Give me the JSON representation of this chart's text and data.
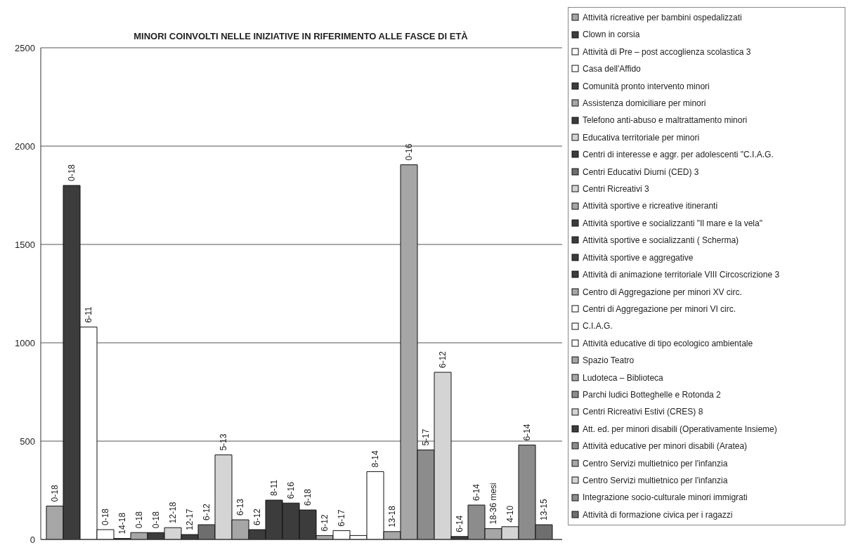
{
  "chart_data": {
    "type": "bar",
    "title": "MINORI COINVOLTI NELLE INIZIATIVE IN RIFERIMENTO ALLE FASCE DI ETÀ",
    "categories": [
      null
    ],
    "series": [
      {
        "name": "Attività ricreative per bambini ospedalizzati",
        "color": "#a6a6a6",
        "values": [
          170
        ],
        "value_labels": [
          "0-18"
        ]
      },
      {
        "name": "Clown in corsia",
        "color": "#3c3c3c",
        "values": [
          1800
        ],
        "value_labels": [
          "0-18"
        ]
      },
      {
        "name": "Attività di Pre – post accoglienza scolastica 3",
        "color": "#ffffff",
        "values": [
          1080
        ],
        "value_labels": [
          "6-11"
        ]
      },
      {
        "name": "Casa dell'Affido",
        "color": "#ffffff",
        "values": [
          50
        ],
        "value_labels": [
          "0-18"
        ]
      },
      {
        "name": "Comunità pronto intervento minori",
        "color": "#3c3c3c",
        "values": [
          5
        ],
        "value_labels": [
          "14-18"
        ]
      },
      {
        "name": "Assistenza domiciliare per minori",
        "color": "#a6a6a6",
        "values": [
          35
        ],
        "value_labels": [
          "0-18"
        ]
      },
      {
        "name": "Telefono anti-abuso e maltrattamento minori",
        "color": "#3c3c3c",
        "values": [
          35
        ],
        "value_labels": [
          "0-18"
        ]
      },
      {
        "name": "Educativa territoriale per minori",
        "color": "#d4d4d4",
        "values": [
          60
        ],
        "value_labels": [
          "12-18"
        ]
      },
      {
        "name": "Centri di interesse e aggr. per adolescenti  \"C.I.A.G.",
        "color": "#3c3c3c",
        "values": [
          25
        ],
        "value_labels": [
          "12-17"
        ]
      },
      {
        "name": "Centri Educativi Diurni (CED)  3",
        "color": "#6e6e6e",
        "values": [
          75
        ],
        "value_labels": [
          "6-12"
        ]
      },
      {
        "name": "Centri Ricreativi  3",
        "color": "#d4d4d4",
        "values": [
          430
        ],
        "value_labels": [
          "5-13"
        ]
      },
      {
        "name": "Attività sportive e ricreative itineranti",
        "color": "#a6a6a6",
        "values": [
          100
        ],
        "value_labels": [
          "6-13"
        ]
      },
      {
        "name": "Attività sportive e socializzanti \"Il mare e la vela\"",
        "color": "#3c3c3c",
        "values": [
          50
        ],
        "value_labels": [
          "6-12"
        ]
      },
      {
        "name": "Attività sportive e socializzanti  ( Scherma)",
        "color": "#3c3c3c",
        "values": [
          200
        ],
        "value_labels": [
          "8-11"
        ]
      },
      {
        "name": "Attività  sportive e aggregative",
        "color": "#3c3c3c",
        "values": [
          185
        ],
        "value_labels": [
          "6-16"
        ]
      },
      {
        "name": "Attività di animazione territoriale VIII Circoscrizione   3",
        "color": "#3c3c3c",
        "values": [
          150
        ],
        "value_labels": [
          "6-18"
        ]
      },
      {
        "name": "Centro di Aggregazione per minori  XV circ.",
        "color": "#a6a6a6",
        "values": [
          20
        ],
        "value_labels": [
          "6-12"
        ]
      },
      {
        "name": "Centri di Aggregazione per minori VI circ.",
        "color": "#ffffff",
        "values": [
          45
        ],
        "value_labels": [
          "6-17"
        ]
      },
      {
        "name": "C.I.A.G.",
        "color": "#ffffff",
        "values": [
          20
        ],
        "value_labels": [
          null
        ]
      },
      {
        "name": "Attività educative di tipo ecologico ambientale",
        "color": "#ffffff",
        "values": [
          345
        ],
        "value_labels": [
          "8-14"
        ]
      },
      {
        "name": "Spazio Teatro",
        "color": "#a6a6a6",
        "values": [
          40
        ],
        "value_labels": [
          "13-18"
        ]
      },
      {
        "name": "Ludoteca – Biblioteca",
        "color": "#a6a6a6",
        "values": [
          1905
        ],
        "value_labels": [
          "0-16"
        ]
      },
      {
        "name": "Parchi ludici Botteghelle e Rotonda 2",
        "color": "#8c8c8c",
        "values": [
          455
        ],
        "value_labels": [
          "5-17"
        ]
      },
      {
        "name": "Centri Ricreativi Estivi (CRES) 8",
        "color": "#d4d4d4",
        "values": [
          850
        ],
        "value_labels": [
          "6-12"
        ]
      },
      {
        "name": "Att. ed. per minori disabili (Operativamente Insieme)",
        "color": "#3c3c3c",
        "values": [
          15
        ],
        "value_labels": [
          "6-14"
        ]
      },
      {
        "name": "Attività educative per minori disabili  (Aratea)",
        "color": "#8c8c8c",
        "values": [
          175
        ],
        "value_labels": [
          "6-14"
        ]
      },
      {
        "name": "Centro Servizi multietnico per l'infanzia",
        "color": "#a6a6a6",
        "values": [
          55
        ],
        "value_labels": [
          "18-36 mesi"
        ]
      },
      {
        "name": "Centro Servizi multietnico per l'infanzia",
        "color": "#d4d4d4",
        "values": [
          65
        ],
        "value_labels": [
          "4-10"
        ]
      },
      {
        "name": "Integrazione socio-culturale minori immigrati",
        "color": "#8c8c8c",
        "values": [
          480
        ],
        "value_labels": [
          "6-14"
        ]
      },
      {
        "name": "Attività di formazione civica per i ragazzi",
        "color": "#6e6e6e",
        "values": [
          75
        ],
        "value_labels": [
          "13-15"
        ]
      }
    ],
    "ylim": [
      0,
      2500
    ],
    "yticks": [
      0,
      500,
      1000,
      1500,
      2000,
      2500
    ],
    "grid": "y",
    "legend": "right",
    "tick_labels": "y"
  }
}
